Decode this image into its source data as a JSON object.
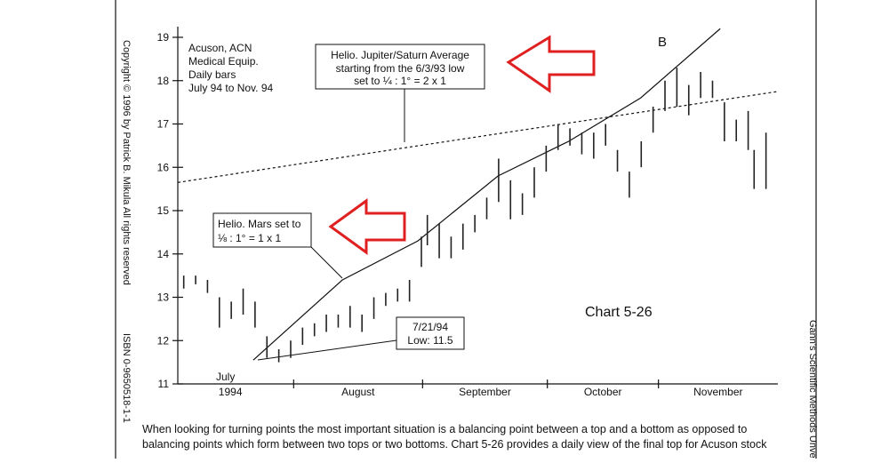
{
  "chart_data": {
    "type": "range_bar",
    "title_lines": [
      "Acuson, ACN",
      "Medical Equip.",
      "Daily bars",
      "July 94 to Nov. 94"
    ],
    "chart_label": "Chart 5-26",
    "point_label": "B",
    "july_label": "July",
    "year_label": "1994",
    "months": [
      "August",
      "September",
      "October",
      "November"
    ],
    "xticks": [
      19.5,
      41.2,
      62.2,
      80.9
    ],
    "xlim": [
      0,
      101
    ],
    "ylim": [
      11,
      19
    ],
    "yticks": [
      11,
      12,
      13,
      14,
      15,
      16,
      17,
      18,
      19
    ],
    "bar_color": "#222",
    "x": [
      1,
      3,
      5,
      7,
      9,
      11,
      13,
      15,
      17,
      19,
      21,
      23,
      25,
      27,
      29,
      31,
      33,
      35,
      37,
      39,
      41,
      42,
      44,
      46,
      48,
      50,
      52,
      54,
      56,
      58,
      60,
      62,
      64,
      66,
      68,
      70,
      72,
      74,
      76,
      78,
      80,
      82,
      84,
      86,
      88,
      90,
      92,
      94,
      96,
      97,
      99
    ],
    "high": [
      13.5,
      13.5,
      13.4,
      13.0,
      12.9,
      13.2,
      12.9,
      12.1,
      11.8,
      12.0,
      12.3,
      12.4,
      12.6,
      12.6,
      12.8,
      12.6,
      13.0,
      13.1,
      13.2,
      13.4,
      14.4,
      14.9,
      14.7,
      14.4,
      14.7,
      14.9,
      15.3,
      16.2,
      15.7,
      15.4,
      16.0,
      16.5,
      17.0,
      16.9,
      16.8,
      16.8,
      17.0,
      16.4,
      15.9,
      16.6,
      17.4,
      18.0,
      18.3,
      17.9,
      18.2,
      18.0,
      17.5,
      17.1,
      17.3,
      16.4,
      16.8
    ],
    "low": [
      13.2,
      13.3,
      13.1,
      12.3,
      12.5,
      12.6,
      12.3,
      11.6,
      11.5,
      11.6,
      11.9,
      12.1,
      12.2,
      12.3,
      12.3,
      12.2,
      12.5,
      12.8,
      12.9,
      12.9,
      13.7,
      14.2,
      13.9,
      13.9,
      14.1,
      14.5,
      14.8,
      15.2,
      14.8,
      14.9,
      15.3,
      15.9,
      16.4,
      16.5,
      16.3,
      16.2,
      16.5,
      15.9,
      15.3,
      16.0,
      16.8,
      17.3,
      17.4,
      17.2,
      17.6,
      17.6,
      16.6,
      16.6,
      16.4,
      15.5,
      15.5
    ],
    "lines": [
      {
        "name": "Helio. Mars set to",
        "subtitle": "⅛ : 1° = 1 x 1",
        "dashed": false,
        "x": [
          12.7,
          27.7,
          40.4,
          53.9,
          65.8,
          77.9,
          91.3
        ],
        "values": [
          11.55,
          13.4,
          14.3,
          15.8,
          16.6,
          17.6,
          19.2
        ]
      },
      {
        "name": "Helio. Jupiter/Saturn Average",
        "subtitle_lines": [
          "starting from the 6/3/93 low",
          "set to ¼ : 1° = 2 x 1"
        ],
        "dashed": true,
        "x": [
          0,
          38.2,
          101
        ],
        "values": [
          15.65,
          16.45,
          17.75
        ]
      }
    ],
    "low_note": [
      "7/21/94",
      "Low: 11.5"
    ],
    "side_left": "Copyright © 1996 by Patrick B. Mikula All rights reserved",
    "side_isbn": "ISBN 0-9650518-1-1",
    "side_right": "Gann's Scientific Methods Unve",
    "body": [
      "When looking for turning points the most important situation is a balancing point between a top and a bottom as opposed to",
      "balancing points which form between two tops or two bottoms.  Chart 5-26 provides a daily view of the final top for Acuson stock"
    ]
  }
}
